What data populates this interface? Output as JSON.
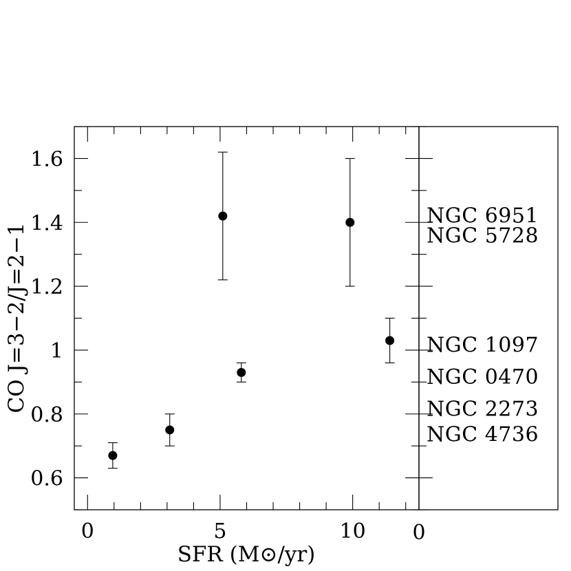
{
  "chart_data": {
    "type": "scatter",
    "title": "",
    "xlabel": "SFR (M⊙/yr)",
    "ylabel": "CO J=3−2/J=2−1",
    "xlim": [
      -0.5,
      12.5
    ],
    "ylim": [
      0.5,
      1.7
    ],
    "x_tick_labels": [
      "0",
      "5",
      "10"
    ],
    "y_tick_labels": [
      "0.6",
      "0.8",
      "1",
      "1.2",
      "1.4",
      "1.6"
    ],
    "series": [
      {
        "points": [
          {
            "x": 0.95,
            "y": 0.67,
            "y_err": 0.04
          },
          {
            "x": 3.1,
            "y": 0.75,
            "y_err": 0.05
          },
          {
            "x": 5.1,
            "y": 1.42,
            "y_err": 0.2
          },
          {
            "x": 5.8,
            "y": 0.93,
            "y_err": 0.03
          },
          {
            "x": 9.9,
            "y": 1.4,
            "y_err": 0.2
          },
          {
            "x": 11.4,
            "y": 1.03,
            "y_err": 0.07
          }
        ]
      }
    ],
    "right_panel": {
      "x_tick_label": "0",
      "labels": [
        {
          "text": "NGC 6951",
          "y": 1.425
        },
        {
          "text": "NGC 5728",
          "y": 1.363
        },
        {
          "text": "NGC 1097",
          "y": 1.02
        },
        {
          "text": "NGC 0470",
          "y": 0.92
        },
        {
          "text": "NGC 2273",
          "y": 0.82
        },
        {
          "text": "NGC 4736",
          "y": 0.74
        }
      ]
    },
    "grid": false,
    "legend": "none"
  }
}
